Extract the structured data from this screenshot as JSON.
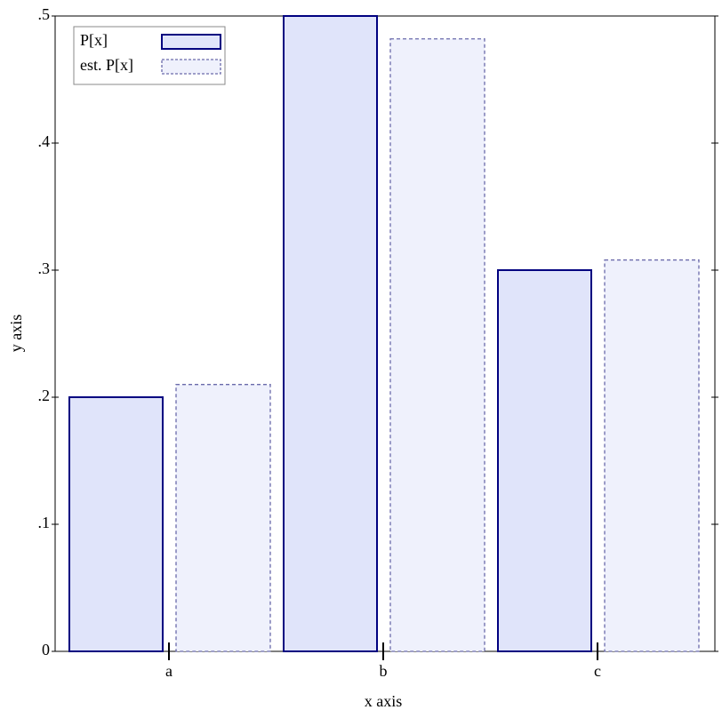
{
  "chart_data": {
    "type": "bar",
    "categories": [
      "a",
      "b",
      "c"
    ],
    "series": [
      {
        "name": "P[x]",
        "color": "#e0e4fa",
        "values": [
          0.2,
          0.5,
          0.3
        ]
      },
      {
        "name": "est. P[x]",
        "color": "#eff1fc",
        "values": [
          0.21,
          0.482,
          0.308
        ]
      }
    ],
    "x_label": "x axis",
    "y_label": "y axis",
    "ylim": [
      0,
      0.5
    ],
    "yticks": [
      0,
      {
        "value": 0.1,
        "label": ".1"
      },
      {
        "value": 0.2,
        "label": ".2"
      },
      {
        "value": 0.3,
        "label": ".3"
      },
      {
        "value": 0.4,
        "label": ".4"
      },
      {
        "value": 0.5,
        "label": ".5"
      }
    ],
    "legend": "top-left"
  }
}
